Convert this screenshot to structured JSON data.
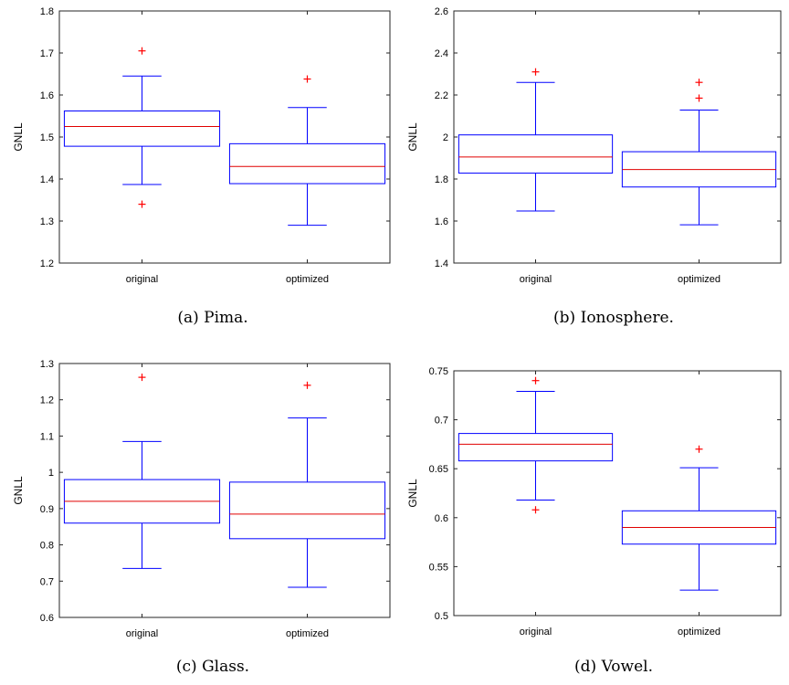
{
  "chart_data": [
    {
      "type": "boxplot",
      "caption": "(a) Pima.",
      "ylabel": "GNLL",
      "ylim": [
        1.2,
        1.8
      ],
      "yticks": [
        1.2,
        1.3,
        1.4,
        1.5,
        1.6,
        1.7,
        1.8
      ],
      "ytick_labels": [
        "1.2",
        "1.3",
        "1.4",
        "1.5",
        "1.6",
        "1.7",
        "1.8"
      ],
      "categories": [
        "original",
        "optimized"
      ],
      "boxes": [
        {
          "whisker_low": 1.387,
          "q1": 1.478,
          "median": 1.525,
          "q3": 1.562,
          "whisker_high": 1.645,
          "outliers": [
            1.705,
            1.34
          ]
        },
        {
          "whisker_low": 1.29,
          "q1": 1.389,
          "median": 1.43,
          "q3": 1.484,
          "whisker_high": 1.57,
          "outliers": [
            1.638
          ]
        }
      ]
    },
    {
      "type": "boxplot",
      "caption": "(b) Ionosphere.",
      "ylabel": "GNLL",
      "ylim": [
        1.4,
        2.6
      ],
      "yticks": [
        1.4,
        1.6,
        1.8,
        2.0,
        2.2,
        2.4,
        2.6
      ],
      "ytick_labels": [
        "1.4",
        "1.6",
        "1.8",
        "2",
        "2.2",
        "2.4",
        "2.6"
      ],
      "categories": [
        "original",
        "optimized"
      ],
      "boxes": [
        {
          "whisker_low": 1.648,
          "q1": 1.828,
          "median": 1.905,
          "q3": 2.01,
          "whisker_high": 2.26,
          "outliers": [
            2.31
          ]
        },
        {
          "whisker_low": 1.582,
          "q1": 1.762,
          "median": 1.845,
          "q3": 1.93,
          "whisker_high": 2.128,
          "outliers": [
            2.26,
            2.185
          ]
        }
      ]
    },
    {
      "type": "boxplot",
      "caption": "(c) Glass.",
      "ylabel": "GNLL",
      "ylim": [
        0.6,
        1.3
      ],
      "yticks": [
        0.6,
        0.7,
        0.8,
        0.9,
        1.0,
        1.1,
        1.2,
        1.3
      ],
      "ytick_labels": [
        "0.6",
        "0.7",
        "0.8",
        "0.9",
        "1",
        "1.1",
        "1.2",
        "1.3"
      ],
      "categories": [
        "original",
        "optimized"
      ],
      "boxes": [
        {
          "whisker_low": 0.735,
          "q1": 0.86,
          "median": 0.92,
          "q3": 0.98,
          "whisker_high": 1.085,
          "outliers": [
            1.262
          ]
        },
        {
          "whisker_low": 0.683,
          "q1": 0.817,
          "median": 0.885,
          "q3": 0.973,
          "whisker_high": 1.15,
          "outliers": [
            1.24
          ]
        }
      ]
    },
    {
      "type": "boxplot",
      "caption": "(d) Vowel.",
      "ylabel": "GNLL",
      "ylim": [
        0.5,
        0.75
      ],
      "yticks": [
        0.5,
        0.55,
        0.6,
        0.65,
        0.7,
        0.75
      ],
      "ytick_labels": [
        "0.5",
        "0.55",
        "0.6",
        "0.65",
        "0.7",
        "0.75"
      ],
      "categories": [
        "original",
        "optimized"
      ],
      "boxes": [
        {
          "whisker_low": 0.618,
          "q1": 0.658,
          "median": 0.675,
          "q3": 0.686,
          "whisker_high": 0.729,
          "outliers": [
            0.74,
            0.608
          ]
        },
        {
          "whisker_low": 0.526,
          "q1": 0.573,
          "median": 0.59,
          "q3": 0.607,
          "whisker_high": 0.651,
          "outliers": [
            0.67
          ]
        }
      ]
    }
  ],
  "colors": {
    "box": "#0000ff",
    "median": "#e00000",
    "outlier": "#ff0000",
    "axes": "#262626"
  }
}
